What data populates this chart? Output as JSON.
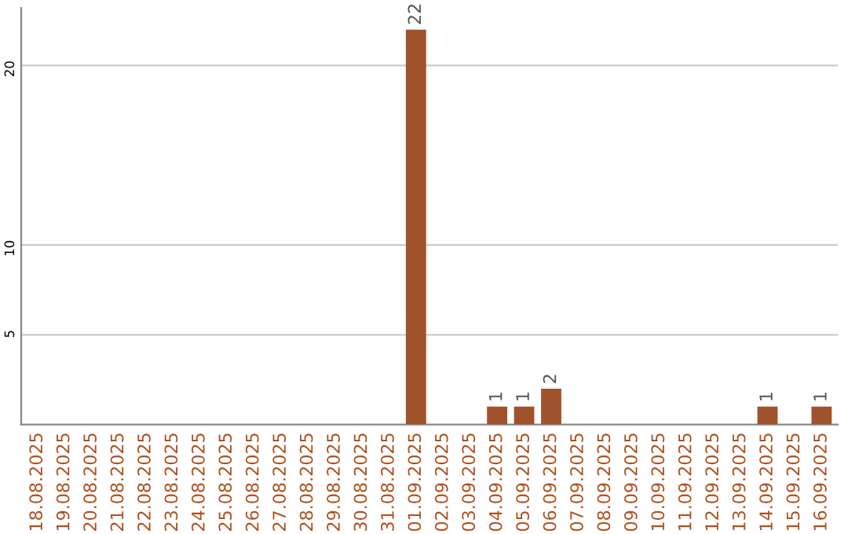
{
  "chart_data": {
    "type": "bar",
    "categories": [
      "18.08.2025",
      "19.08.2025",
      "20.08.2025",
      "21.08.2025",
      "22.08.2025",
      "23.08.2025",
      "24.08.2025",
      "25.08.2025",
      "26.08.2025",
      "27.08.2025",
      "28.08.2025",
      "29.08.2025",
      "30.08.2025",
      "31.08.2025",
      "01.09.2025",
      "02.09.2025",
      "03.09.2025",
      "04.09.2025",
      "05.09.2025",
      "06.09.2025",
      "07.09.2025",
      "08.09.2025",
      "09.09.2025",
      "10.09.2025",
      "11.09.2025",
      "12.09.2025",
      "13.09.2025",
      "14.09.2025",
      "15.09.2025",
      "16.09.2025"
    ],
    "values": [
      0,
      0,
      0,
      0,
      0,
      0,
      0,
      0,
      0,
      0,
      0,
      0,
      0,
      0,
      22,
      0,
      0,
      1,
      1,
      2,
      0,
      0,
      0,
      0,
      0,
      0,
      0,
      1,
      0,
      1
    ],
    "value_labels": [
      null,
      null,
      null,
      null,
      null,
      null,
      null,
      null,
      null,
      null,
      null,
      null,
      null,
      null,
      "22",
      null,
      null,
      "1",
      "1",
      "2",
      null,
      null,
      null,
      null,
      null,
      null,
      null,
      "1",
      null,
      "1"
    ],
    "color": "#a0522d",
    "ylim": [
      0,
      23.2
    ],
    "yticks": [
      5,
      10,
      20
    ],
    "grid": "y",
    "legend": false
  }
}
